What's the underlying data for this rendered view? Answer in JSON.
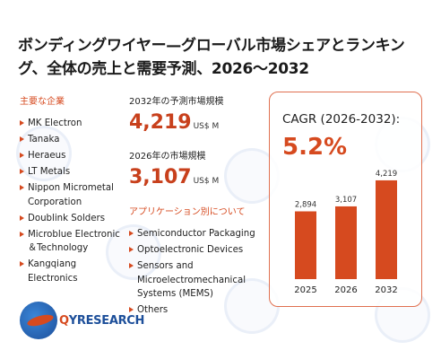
{
  "title": "ボンディングワイヤー—グローバル市場シェアとランキング、全体の売上と需要予測、2026～2032",
  "companies": {
    "heading": "主要な企業",
    "items": [
      "MK Electron",
      "Tanaka",
      "Heraeus",
      "LT Metals",
      "Nippon Micrometal Corporation",
      "Doublink Solders",
      "Microblue Electronic ＆Technology",
      "Kangqiang Electronics"
    ]
  },
  "market_2032": {
    "label": "2032年の予測市場規模",
    "value": "4,219",
    "unit": "US$ M"
  },
  "market_2026": {
    "label": "2026年の市場規模",
    "value": "3,107",
    "unit": "US$ M"
  },
  "applications": {
    "heading": "アプリケーション別について",
    "items": [
      "Semiconductor Packaging",
      "Optoelectronic Devices",
      "Sensors and Microelectromechanical Systems (MEMS)",
      "Others"
    ]
  },
  "cagr": {
    "label": "CAGR (2026-2032):",
    "value": "5.2%"
  },
  "colors": {
    "accent": "#d64a1f",
    "bar": "#d64a1f",
    "value_text": "#c8401c"
  },
  "logo": {
    "text_q": "Q",
    "text_rest": "YRESEARCH"
  },
  "chart_data": {
    "type": "bar",
    "categories": [
      "2025",
      "2026",
      "2032"
    ],
    "values": [
      2894,
      3107,
      4219
    ],
    "value_labels": [
      "2,894",
      "3,107",
      "4,219"
    ],
    "title": "",
    "xlabel": "",
    "ylabel": "",
    "ylim": [
      0,
      4600
    ]
  }
}
